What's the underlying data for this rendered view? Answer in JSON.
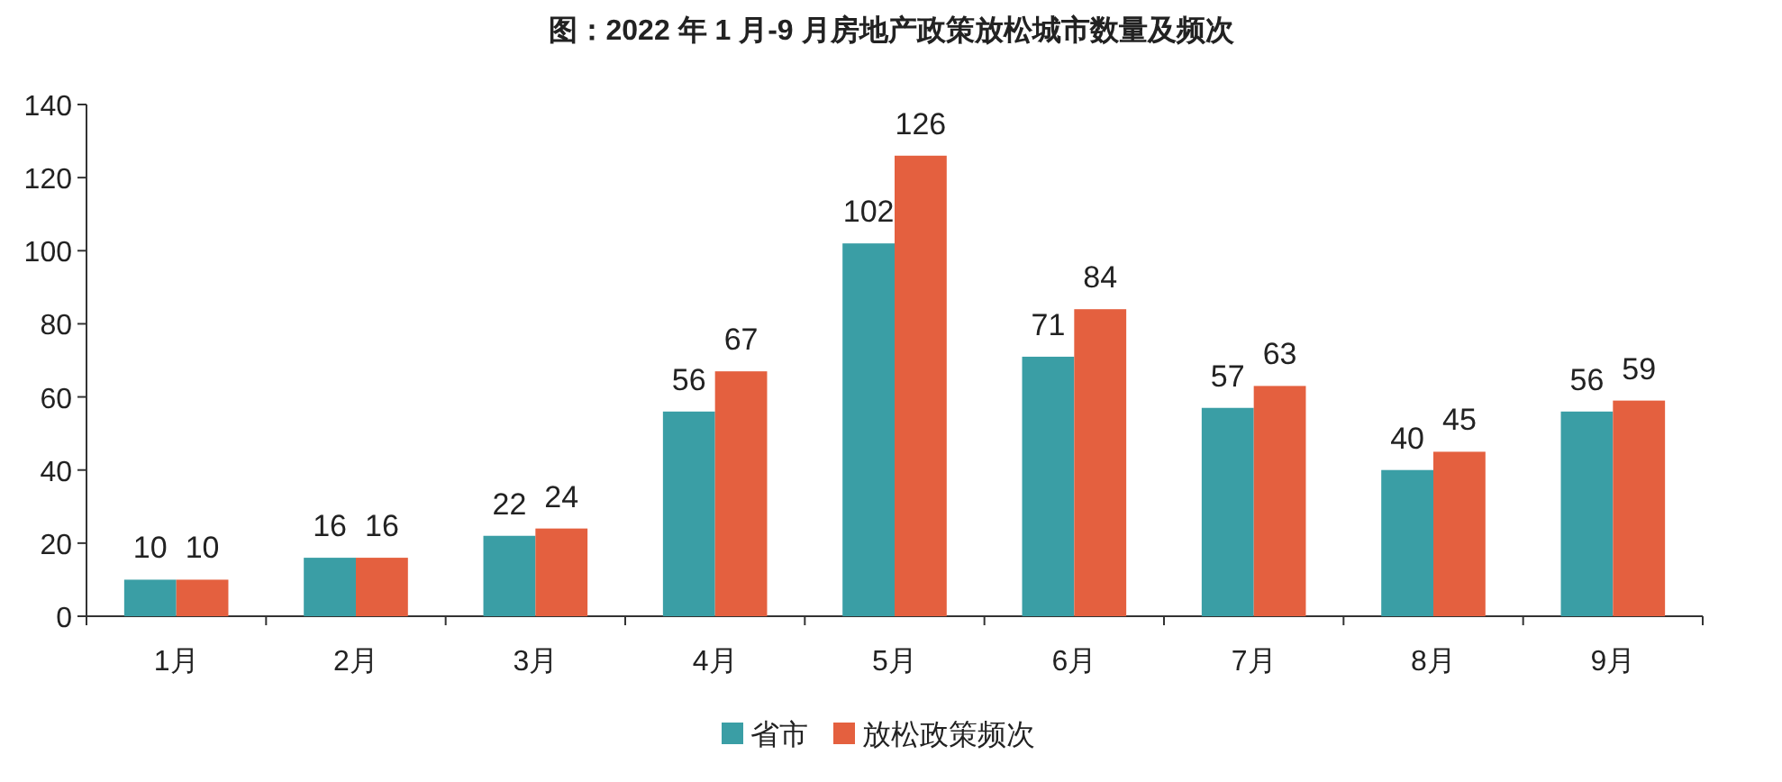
{
  "chart_data": {
    "type": "bar",
    "title": "图：2022 年 1 月-9 月房地产政策放松城市数量及频次",
    "categories": [
      "1月",
      "2月",
      "3月",
      "4月",
      "5月",
      "6月",
      "7月",
      "8月",
      "9月"
    ],
    "series": [
      {
        "name": "省市",
        "color": "#3a9ea5",
        "values": [
          10,
          16,
          22,
          56,
          102,
          71,
          57,
          40,
          56
        ]
      },
      {
        "name": "放松政策频次",
        "color": "#e4603f",
        "values": [
          10,
          16,
          24,
          67,
          126,
          84,
          63,
          45,
          59
        ]
      }
    ],
    "ylim": [
      0,
      140
    ],
    "yticks": [
      0,
      20,
      40,
      60,
      80,
      100,
      120,
      140
    ],
    "grid": false,
    "legend": "bottom",
    "data_labels": true
  }
}
